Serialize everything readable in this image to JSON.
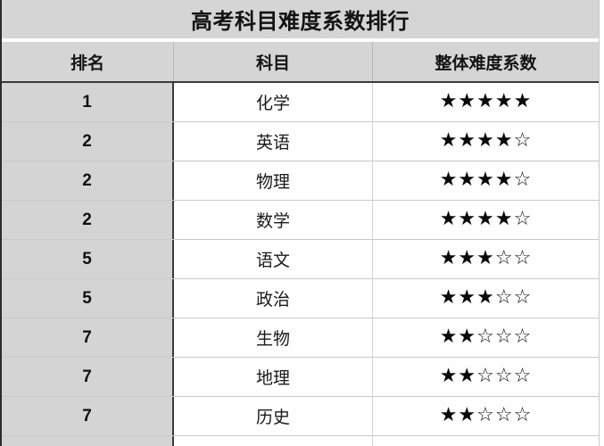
{
  "title": "高考科目难度系数排行",
  "table": {
    "header": [
      "排名",
      "科目",
      "整体难度系数"
    ],
    "rows": [
      {
        "rank": "1",
        "subject": "化学",
        "rating": 5,
        "stars": "★★★★★"
      },
      {
        "rank": "2",
        "subject": "英语",
        "rating": 4,
        "stars": "★★★★☆"
      },
      {
        "rank": "2",
        "subject": "物理",
        "rating": 4,
        "stars": "★★★★☆"
      },
      {
        "rank": "2",
        "subject": "数学",
        "rating": 4,
        "stars": "★★★★☆"
      },
      {
        "rank": "5",
        "subject": "语文",
        "rating": 3,
        "stars": "★★★☆☆"
      },
      {
        "rank": "5",
        "subject": "政治",
        "rating": 3,
        "stars": "★★★☆☆"
      },
      {
        "rank": "7",
        "subject": "生物",
        "rating": 2,
        "stars": "★★☆☆☆"
      },
      {
        "rank": "7",
        "subject": "地理",
        "rating": 2,
        "stars": "★★☆☆☆"
      },
      {
        "rank": "7",
        "subject": "历史",
        "rating": 2,
        "stars": "★★☆☆☆"
      }
    ],
    "rating_max": 5
  },
  "chart_data": {
    "type": "table",
    "title": "高考科目难度系数排行",
    "columns": [
      "排名",
      "科目",
      "整体难度系数"
    ],
    "rows": [
      [
        1,
        "化学",
        5
      ],
      [
        2,
        "英语",
        4
      ],
      [
        2,
        "物理",
        4
      ],
      [
        2,
        "数学",
        4
      ],
      [
        5,
        "语文",
        3
      ],
      [
        5,
        "政治",
        3
      ],
      [
        7,
        "生物",
        2
      ],
      [
        7,
        "地理",
        2
      ],
      [
        7,
        "历史",
        2
      ]
    ],
    "rating_max": 5,
    "rating_style": "stars"
  },
  "colors": {
    "title_bg": "#d5d5d5",
    "header_bg": "#d5d5d5",
    "rank_column_bg": "#d4d4d4",
    "row_bg": "#fefefe",
    "dark_border": "#3a3a3a",
    "left_edge_border": "#2c2c2c",
    "light_divider": "#c9c9c9",
    "text": "#141414"
  }
}
